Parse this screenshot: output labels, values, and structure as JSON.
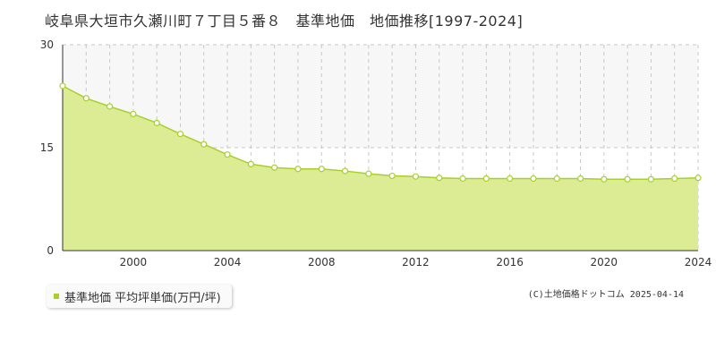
{
  "chart_data": {
    "type": "area",
    "title": "岐阜県大垣市久瀬川町７丁目５番８　基準地価　地価推移[1997-2024]",
    "xlabel": "",
    "ylabel": "",
    "xlim": [
      1997,
      2024
    ],
    "ylim": [
      0,
      30
    ],
    "x_ticks": [
      "2000",
      "2004",
      "2008",
      "2012",
      "2016",
      "2020",
      "2024"
    ],
    "y_ticks": [
      "0",
      "15",
      "30"
    ],
    "grid": true,
    "legend_position": "bottom-left",
    "series": [
      {
        "name": "基準地価 平均坪単価(万円/坪)",
        "color": "#a8cf2a",
        "fill": "#dcec94",
        "x": [
          1997,
          1998,
          1999,
          2000,
          2001,
          2002,
          2003,
          2004,
          2005,
          2006,
          2007,
          2008,
          2009,
          2010,
          2011,
          2012,
          2013,
          2014,
          2015,
          2016,
          2017,
          2018,
          2019,
          2020,
          2021,
          2022,
          2023,
          2024
        ],
        "values": [
          24.0,
          22.2,
          21.0,
          19.9,
          18.6,
          17.0,
          15.5,
          14.0,
          12.6,
          12.1,
          11.9,
          11.9,
          11.6,
          11.2,
          10.9,
          10.8,
          10.6,
          10.5,
          10.5,
          10.5,
          10.5,
          10.5,
          10.5,
          10.4,
          10.4,
          10.4,
          10.5,
          10.6
        ]
      }
    ]
  },
  "legend": {
    "label": "基準地価 平均坪単価(万円/坪)"
  },
  "copyright": "(C)土地価格ドットコム 2025-04-14"
}
